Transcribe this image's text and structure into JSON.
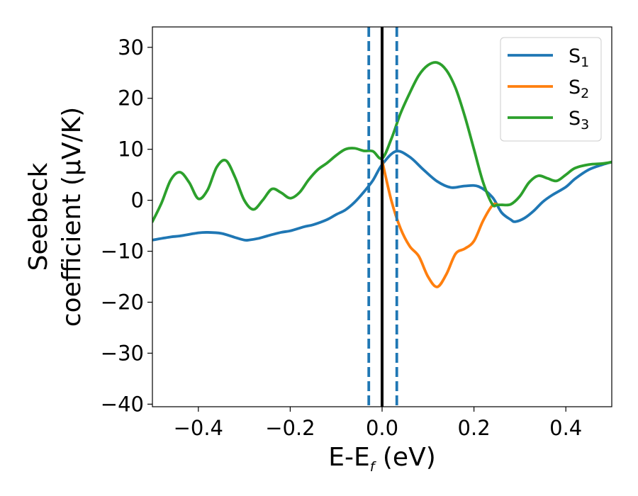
{
  "chart_data": {
    "type": "line",
    "xlabel": "E-E",
    "xlabel_sub": "f",
    "xlabel_unit": " (eV)",
    "ylabel_line1": "Seebeck",
    "ylabel_line2": "coefficient  (μV/K)",
    "xlim": [
      -0.5,
      0.5
    ],
    "ylim": [
      -40.5,
      34
    ],
    "xticks": [
      -0.4,
      -0.2,
      0.0,
      0.2,
      0.4
    ],
    "xtick_labels": [
      "−0.4",
      "−0.2",
      "0.0",
      "0.2",
      "0.4"
    ],
    "yticks": [
      30,
      20,
      10,
      0,
      -10,
      -20,
      -30,
      -40
    ],
    "ytick_labels": [
      "30",
      "20",
      "10",
      "0",
      "−10",
      "−20",
      "−30",
      "−40"
    ],
    "grid": false,
    "legend_position": "top-right",
    "vlines": [
      {
        "x": -0.029,
        "style": "dashed",
        "color": "#1f77b4"
      },
      {
        "x": 0.0,
        "style": "solid",
        "color": "#000000"
      },
      {
        "x": 0.032,
        "style": "dashed",
        "color": "#1f77b4"
      }
    ],
    "series": [
      {
        "name": "S",
        "sub": "1",
        "color": "#1f77b4",
        "x": [
          -0.5,
          -0.46,
          -0.44,
          -0.4,
          -0.38,
          -0.35,
          -0.32,
          -0.3,
          -0.29,
          -0.27,
          -0.25,
          -0.22,
          -0.2,
          -0.17,
          -0.15,
          -0.12,
          -0.1,
          -0.08,
          -0.06,
          -0.04,
          -0.02,
          0.0,
          0.03,
          0.06,
          0.09,
          0.12,
          0.15,
          0.18,
          0.21,
          0.24,
          0.26,
          0.28,
          0.29,
          0.31,
          0.33,
          0.35,
          0.37,
          0.4,
          0.42,
          0.45,
          0.48,
          0.5
        ],
        "values": [
          -7.8,
          -7.2,
          -7.0,
          -6.4,
          -6.3,
          -6.5,
          -7.3,
          -7.8,
          -7.8,
          -7.5,
          -7.0,
          -6.3,
          -6.0,
          -5.2,
          -4.8,
          -3.8,
          -2.8,
          -1.9,
          -0.4,
          1.6,
          3.9,
          7.0,
          9.6,
          8.5,
          6.0,
          3.7,
          2.5,
          2.8,
          2.7,
          0.6,
          -2.4,
          -3.8,
          -4.2,
          -3.5,
          -2.1,
          -0.3,
          1.0,
          2.6,
          4.2,
          6.0,
          7.0,
          7.5
        ]
      },
      {
        "name": "S",
        "sub": "2",
        "color": "#ff7f0e",
        "x": [
          0.0,
          0.02,
          0.04,
          0.06,
          0.08,
          0.1,
          0.12,
          0.14,
          0.16,
          0.18,
          0.2,
          0.22,
          0.24,
          0.25
        ],
        "values": [
          7.8,
          0.0,
          -5.5,
          -9.0,
          -11.0,
          -15.0,
          -17.0,
          -14.5,
          -10.5,
          -9.5,
          -8.0,
          -4.0,
          -1.0,
          -0.8
        ]
      },
      {
        "name": "S",
        "sub": "3",
        "color": "#2ca02c",
        "x": [
          -0.5,
          -0.48,
          -0.46,
          -0.44,
          -0.42,
          -0.4,
          -0.38,
          -0.36,
          -0.34,
          -0.32,
          -0.3,
          -0.28,
          -0.26,
          -0.24,
          -0.22,
          -0.2,
          -0.18,
          -0.16,
          -0.14,
          -0.12,
          -0.1,
          -0.08,
          -0.06,
          -0.04,
          -0.02,
          0.0,
          0.02,
          0.04,
          0.06,
          0.08,
          0.1,
          0.12,
          0.14,
          0.16,
          0.18,
          0.2,
          0.22,
          0.24,
          0.25,
          0.26,
          0.28,
          0.3,
          0.32,
          0.34,
          0.36,
          0.38,
          0.4,
          0.42,
          0.45,
          0.48,
          0.5
        ],
        "values": [
          -4.2,
          -0.5,
          4.0,
          5.5,
          3.5,
          0.3,
          2.0,
          6.5,
          7.8,
          4.5,
          0.0,
          -1.8,
          0.0,
          2.2,
          1.5,
          0.4,
          1.5,
          4.0,
          6.0,
          7.3,
          8.8,
          10.0,
          10.2,
          9.7,
          9.6,
          8.2,
          12.0,
          17.0,
          21.0,
          24.5,
          26.5,
          27.0,
          25.5,
          22.0,
          16.5,
          10.0,
          3.5,
          -0.8,
          -0.9,
          -0.9,
          -0.8,
          0.8,
          3.5,
          4.8,
          4.3,
          3.8,
          5.0,
          6.3,
          7.0,
          7.2,
          7.5
        ]
      }
    ]
  }
}
